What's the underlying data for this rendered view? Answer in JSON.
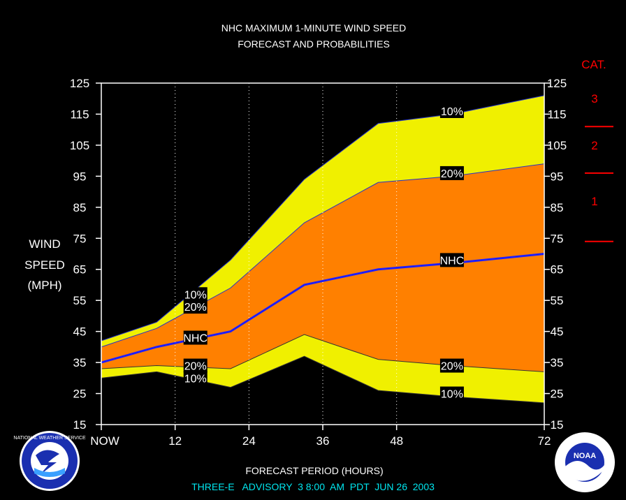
{
  "chart_data": {
    "type": "area",
    "title": "NHC MAXIMUM 1-MINUTE WIND SPEED",
    "subtitle": "FORECAST AND PROBABILITIES",
    "ylabel_lines": [
      "WIND",
      "SPEED",
      "(MPH)"
    ],
    "xlabel": "FORECAST PERIOD (HOURS)",
    "footer": "THREE-E   ADVISORY  3 8:00  AM  PDT  JUN 26  2003",
    "xlim": [
      0,
      72
    ],
    "ylim": [
      15,
      125
    ],
    "x_ticks": [
      {
        "x": 0,
        "label": "NOW"
      },
      {
        "x": 12,
        "label": "12"
      },
      {
        "x": 24,
        "label": "24"
      },
      {
        "x": 36,
        "label": "36"
      },
      {
        "x": 48,
        "label": "48"
      },
      {
        "x": 72,
        "label": "72"
      }
    ],
    "y_ticks": [
      15,
      25,
      35,
      45,
      55,
      65,
      75,
      85,
      95,
      105,
      115,
      125
    ],
    "x": [
      0,
      9,
      21,
      33,
      45,
      57,
      72
    ],
    "series": [
      {
        "name": "10%",
        "role": "upper10",
        "values": [
          42,
          48,
          68,
          94,
          112,
          115,
          121
        ]
      },
      {
        "name": "20%",
        "role": "upper20",
        "values": [
          40,
          46,
          59,
          80,
          93,
          95,
          99
        ]
      },
      {
        "name": "NHC",
        "role": "nhc",
        "values": [
          35,
          40,
          45,
          60,
          65,
          67,
          70
        ]
      },
      {
        "name": "20%",
        "role": "lower20",
        "values": [
          33,
          34,
          33,
          44,
          36,
          34,
          32
        ]
      },
      {
        "name": "10%",
        "role": "lower10",
        "values": [
          30,
          32,
          27,
          37,
          26,
          24,
          22
        ]
      }
    ],
    "band_labels": [
      {
        "text": "10%",
        "x": 15.3,
        "y": 57
      },
      {
        "text": "20%",
        "x": 15.3,
        "y": 53
      },
      {
        "text": "NHC",
        "x": 15.3,
        "y": 43
      },
      {
        "text": "20%",
        "x": 15.3,
        "y": 34
      },
      {
        "text": "10%",
        "x": 15.3,
        "y": 30
      },
      {
        "text": "10%",
        "x": 57,
        "y": 116
      },
      {
        "text": "20%",
        "x": 57,
        "y": 96
      },
      {
        "text": "NHC",
        "x": 57,
        "y": 68
      },
      {
        "text": "20%",
        "x": 57,
        "y": 34
      },
      {
        "text": "10%",
        "x": 57,
        "y": 25
      }
    ],
    "category_header": "CAT.",
    "categories": [
      {
        "label": "3",
        "y": 120
      },
      {
        "label": "2",
        "y": 105
      },
      {
        "label": "1",
        "y": 87
      }
    ],
    "category_bounds": [
      111,
      96,
      74
    ],
    "colors": {
      "background": "#000000",
      "outer_band": "#f0f000",
      "inner_band": "#ff8000",
      "nhc_line": "#1e1eff",
      "category": "#ff0000",
      "footer": "#00e5ee",
      "plot_border": "#ffffff"
    },
    "grid": "dotted vertical lines at forecast hours"
  },
  "logos": {
    "left": {
      "icon": "nws-logo-icon",
      "text": "NATIONAL WEATHER SERVICE"
    },
    "right": {
      "icon": "noaa-logo-icon",
      "text": "NOAA"
    }
  }
}
